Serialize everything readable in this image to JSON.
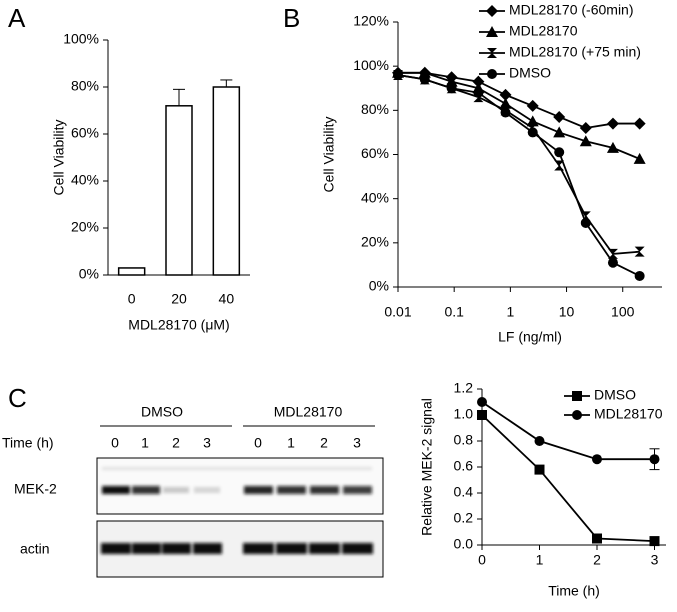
{
  "panel_labels": [
    "A",
    "B",
    "C"
  ],
  "chart_data": [
    {
      "type": "bar",
      "ylabel": "Cell Viability",
      "xlabel": "MDL28170 (μM)",
      "categories": [
        "0",
        "20",
        "40"
      ],
      "values": [
        3,
        72,
        80
      ],
      "errors": [
        null,
        7,
        3
      ],
      "color": "#ffffff",
      "ylim": [
        0,
        100
      ],
      "yticks": [
        {
          "value": 0,
          "label": "0%"
        },
        {
          "value": 20,
          "label": "20%"
        },
        {
          "value": 40,
          "label": "40%"
        },
        {
          "value": 60,
          "label": "60%"
        },
        {
          "value": 80,
          "label": "80%"
        },
        {
          "value": 100,
          "label": "100%"
        }
      ]
    },
    {
      "type": "line",
      "ylabel": "Cell Viability",
      "xlabel": "LF (ng/ml)",
      "xscale": "log",
      "x": [
        0.01,
        0.03,
        0.09,
        0.27,
        0.82,
        2.5,
        7.4,
        22,
        67,
        200
      ],
      "series": [
        {
          "name": "MDL28170 (-60min)",
          "color": "#000000",
          "marker": "diamond",
          "values": [
            97,
            97,
            95,
            93,
            87,
            82,
            77,
            72,
            74,
            74
          ]
        },
        {
          "name": "MDL28170",
          "color": "#000000",
          "marker": "triangle",
          "values": [
            97,
            97,
            93,
            90,
            83,
            75,
            70,
            66,
            63,
            58
          ]
        },
        {
          "name": "MDL28170 (+75 min)",
          "color": "#000000",
          "marker": "bowtie",
          "values": [
            96,
            94,
            90,
            86,
            80,
            72,
            55,
            32,
            15,
            16
          ]
        },
        {
          "name": "DMSO",
          "color": "#000000",
          "marker": "circle",
          "values": [
            96,
            94,
            90,
            88,
            79,
            70,
            61,
            29,
            11,
            5
          ]
        }
      ],
      "xlim": [
        0.01,
        500
      ],
      "xticks": [
        0.01,
        0.1,
        1,
        10,
        100
      ],
      "ylim": [
        0,
        120
      ],
      "yticks": [
        {
          "value": 0,
          "label": "0%"
        },
        {
          "value": 20,
          "label": "20%"
        },
        {
          "value": 40,
          "label": "40%"
        },
        {
          "value": 60,
          "label": "60%"
        },
        {
          "value": 80,
          "label": "80%"
        },
        {
          "value": 100,
          "label": "100%"
        },
        {
          "value": 120,
          "label": "120%"
        }
      ]
    },
    {
      "type": "line",
      "ylabel": "Relative MEK-2 signal",
      "xlabel": "Time (h)",
      "x": [
        0,
        1,
        2,
        3
      ],
      "series": [
        {
          "name": "DMSO",
          "color": "#000000",
          "marker": "square",
          "values": [
            1.0,
            0.58,
            0.05,
            0.03
          ]
        },
        {
          "name": "MDL28170",
          "color": "#000000",
          "marker": "circle",
          "values": [
            1.1,
            0.8,
            0.66,
            0.66
          ],
          "errors": [
            null,
            null,
            null,
            0.08
          ]
        }
      ],
      "xlim": [
        0,
        3.2
      ],
      "xticks": [
        0,
        1,
        2,
        3
      ],
      "ylim": [
        0,
        1.2
      ],
      "yticks": [
        {
          "value": 0,
          "label": "0.0"
        },
        0.2,
        0.4,
        0.6,
        0.8,
        {
          "value": 1,
          "label": "1.0"
        },
        1.2
      ]
    }
  ],
  "blot": {
    "groups": [
      "DMSO",
      "MDL28170"
    ],
    "time_label": "Time (h)",
    "lanes": [
      "0",
      "1",
      "2",
      "3",
      "0",
      "1",
      "2",
      "3"
    ],
    "rows": [
      "MEK-2",
      "actin"
    ]
  }
}
